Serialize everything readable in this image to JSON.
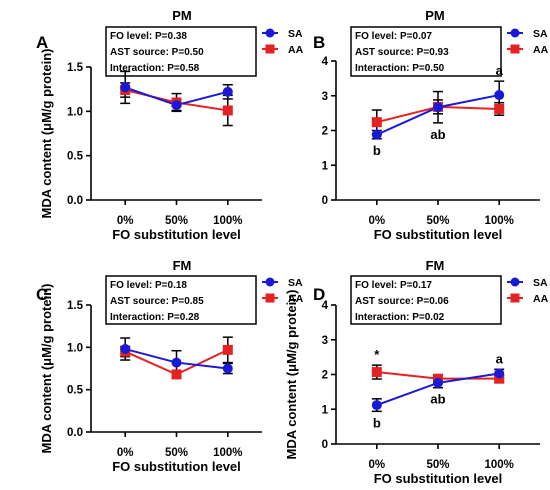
{
  "colors": {
    "SA": "#1a1ad6",
    "AA": "#e52222",
    "axis": "#000000"
  },
  "chart_data": [
    {
      "type": "line",
      "panel": "A",
      "title": "PM",
      "categories": [
        "0%",
        "50%",
        "100%"
      ],
      "xlabel": "FO substitution level",
      "ylabel": "MDA content (μM/g protein)",
      "ylim": [
        0,
        1.5
      ],
      "yticks": [
        "0.0",
        "0.5",
        "1.0",
        "1.5"
      ],
      "stats": [
        "FO level: P=0.38",
        "AST source: P=0.50",
        "Interaction: P=0.58"
      ],
      "series": [
        {
          "name": "SA",
          "values": [
            1.27,
            1.07,
            1.22
          ],
          "errors": [
            0.18,
            0.06,
            0.08
          ]
        },
        {
          "name": "AA",
          "values": [
            1.24,
            1.1,
            1.01
          ],
          "errors": [
            0.08,
            0.1,
            0.17
          ]
        }
      ],
      "annotations": []
    },
    {
      "type": "line",
      "panel": "B",
      "title": "PM",
      "categories": [
        "0%",
        "50%",
        "100%"
      ],
      "xlabel": "FO substitution level",
      "ylabel": "",
      "ylim": [
        0,
        4
      ],
      "yticks": [
        "0",
        "1",
        "2",
        "3",
        "4"
      ],
      "stats": [
        "FO level: P=0.07",
        "AST source: P=0.93",
        "Interaction: P=0.50"
      ],
      "series": [
        {
          "name": "SA",
          "values": [
            1.88,
            2.67,
            3.02
          ],
          "errors": [
            0.12,
            0.45,
            0.4
          ]
        },
        {
          "name": "AA",
          "values": [
            2.24,
            2.68,
            2.62
          ],
          "errors": [
            0.35,
            0.2,
            0.18
          ]
        }
      ],
      "annotations": [
        {
          "text": "b",
          "category": "0%",
          "position": "below"
        },
        {
          "text": "ab",
          "category": "50%",
          "position": "below"
        },
        {
          "text": "a",
          "category": "100%",
          "position": "above"
        }
      ]
    },
    {
      "type": "line",
      "panel": "C",
      "title": "FM",
      "categories": [
        "0%",
        "50%",
        "100%"
      ],
      "xlabel": "FO substitution level",
      "ylabel": "MDA content (μM/g protein)",
      "ylim": [
        0,
        1.5
      ],
      "yticks": [
        "0.0",
        "0.5",
        "1.0",
        "1.5"
      ],
      "stats": [
        "FO level: P=0.18",
        "AST source: P=0.85",
        "Interaction: P=0.28"
      ],
      "series": [
        {
          "name": "SA",
          "values": [
            0.98,
            0.82,
            0.75
          ],
          "errors": [
            0.13,
            0.14,
            0.06
          ]
        },
        {
          "name": "AA",
          "values": [
            0.95,
            0.68,
            0.97
          ],
          "errors": [
            0.06,
            0.04,
            0.15
          ]
        }
      ],
      "annotations": []
    },
    {
      "type": "line",
      "panel": "D",
      "title": "FM",
      "categories": [
        "0%",
        "50%",
        "100%"
      ],
      "xlabel": "FO substitution level",
      "ylabel": "MDA content (μM/g protein)",
      "ylim": [
        0,
        4
      ],
      "yticks": [
        "0",
        "1",
        "2",
        "3",
        "4"
      ],
      "stats": [
        "FO level: P=0.17",
        "AST source: P=0.06",
        "Interaction: P=0.02"
      ],
      "series": [
        {
          "name": "SA",
          "values": [
            1.12,
            1.76,
            2.03
          ],
          "errors": [
            0.18,
            0.14,
            0.12
          ]
        },
        {
          "name": "AA",
          "values": [
            2.07,
            1.88,
            1.88
          ],
          "errors": [
            0.2,
            0.1,
            0.1
          ]
        }
      ],
      "annotations": [
        {
          "text": "*",
          "category": "0%",
          "position": "above"
        },
        {
          "text": "b",
          "category": "0%",
          "position": "below"
        },
        {
          "text": "ab",
          "category": "50%",
          "position": "below"
        },
        {
          "text": "a",
          "category": "100%",
          "position": "above"
        }
      ]
    }
  ]
}
